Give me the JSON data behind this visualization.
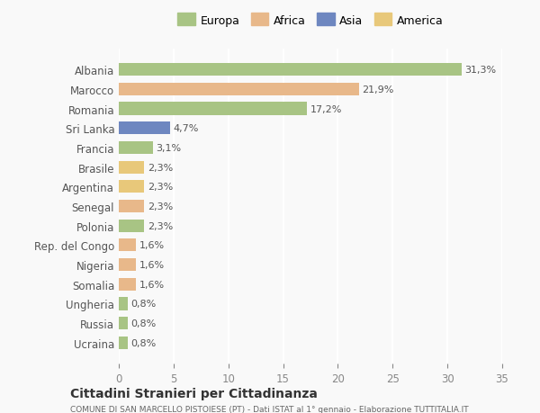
{
  "countries": [
    "Albania",
    "Marocco",
    "Romania",
    "Sri Lanka",
    "Francia",
    "Brasile",
    "Argentina",
    "Senegal",
    "Polonia",
    "Rep. del Congo",
    "Nigeria",
    "Somalia",
    "Ungheria",
    "Russia",
    "Ucraina"
  ],
  "values": [
    31.3,
    21.9,
    17.2,
    4.7,
    3.1,
    2.3,
    2.3,
    2.3,
    2.3,
    1.6,
    1.6,
    1.6,
    0.8,
    0.8,
    0.8
  ],
  "labels": [
    "31,3%",
    "21,9%",
    "17,2%",
    "4,7%",
    "3,1%",
    "2,3%",
    "2,3%",
    "2,3%",
    "2,3%",
    "1,6%",
    "1,6%",
    "1,6%",
    "0,8%",
    "0,8%",
    "0,8%"
  ],
  "colors": [
    "#a8c484",
    "#e8b88a",
    "#a8c484",
    "#6e87c0",
    "#a8c484",
    "#e8c87a",
    "#e8c87a",
    "#e8b88a",
    "#a8c484",
    "#e8b88a",
    "#e8b88a",
    "#e8b88a",
    "#a8c484",
    "#a8c484",
    "#a8c484"
  ],
  "continents": [
    "Europa",
    "Africa",
    "Europa",
    "Asia",
    "Europa",
    "America",
    "America",
    "Africa",
    "Europa",
    "Africa",
    "Africa",
    "Africa",
    "Europa",
    "Europa",
    "Europa"
  ],
  "legend_labels": [
    "Europa",
    "Africa",
    "Asia",
    "America"
  ],
  "legend_colors": [
    "#a8c484",
    "#e8b88a",
    "#6e87c0",
    "#e8c87a"
  ],
  "title": "Cittadini Stranieri per Cittadinanza",
  "subtitle": "COMUNE DI SAN MARCELLO PISTOIESE (PT) - Dati ISTAT al 1° gennaio - Elaborazione TUTTITALIA.IT",
  "xlim": [
    0,
    35
  ],
  "xticks": [
    0,
    5,
    10,
    15,
    20,
    25,
    30,
    35
  ],
  "background_color": "#f9f9f9",
  "grid_color": "#ffffff",
  "bar_height": 0.65
}
